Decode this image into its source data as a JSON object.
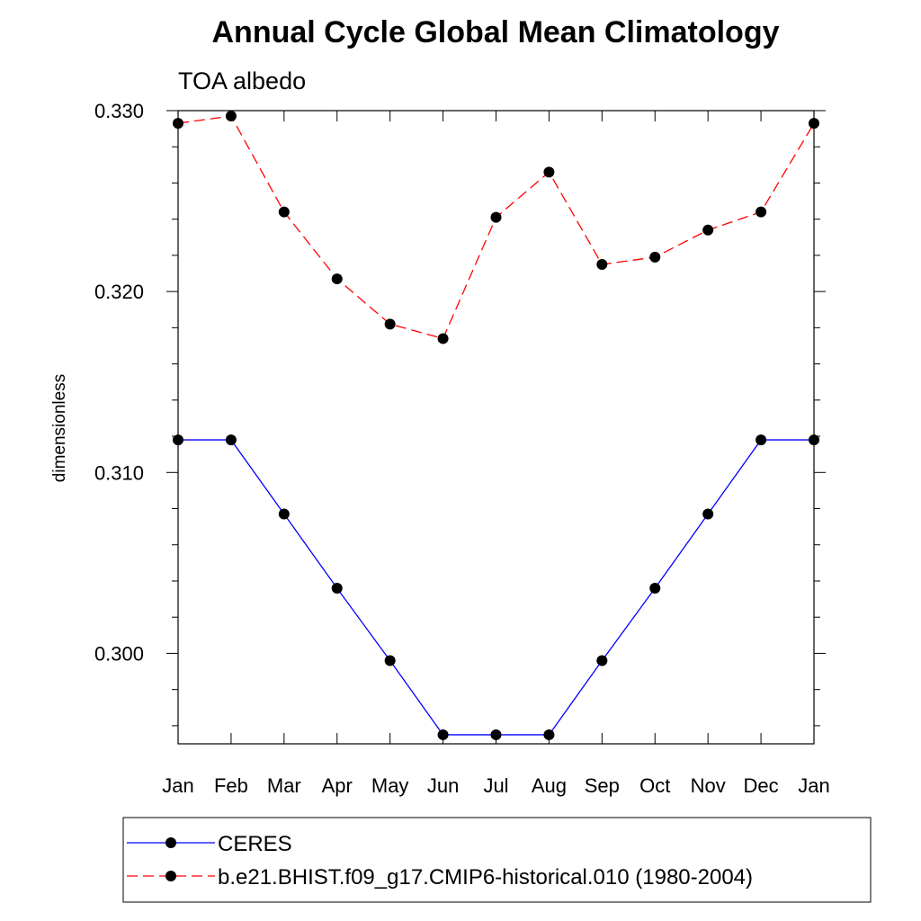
{
  "chart_data": {
    "type": "line",
    "title": "Annual Cycle Global Mean Climatology",
    "subtitle": "TOA albedo",
    "xlabel": "",
    "ylabel": "dimensionless",
    "categories": [
      "Jan",
      "Feb",
      "Mar",
      "Apr",
      "May",
      "Jun",
      "Jul",
      "Aug",
      "Sep",
      "Oct",
      "Nov",
      "Dec",
      "Jan"
    ],
    "ylim": [
      0.295,
      0.33
    ],
    "yticks": [
      "0.300",
      "0.310",
      "0.320",
      "0.330"
    ],
    "grid": false,
    "legend_position": "bottom",
    "series": [
      {
        "name": "CERES",
        "color": "#0000ff",
        "line_style": "solid",
        "marker": "circle",
        "values": [
          0.3118,
          0.3118,
          0.3077,
          0.3036,
          0.2996,
          0.2955,
          0.2955,
          0.2955,
          0.2996,
          0.3036,
          0.3077,
          0.3118,
          0.3118
        ]
      },
      {
        "name": "b.e21.BHIST.f09_g17.CMIP6-historical.010 (1980-2004)",
        "color": "#ff0000",
        "line_style": "dashed",
        "marker": "circle",
        "values": [
          0.3293,
          0.3297,
          0.3244,
          0.3207,
          0.3182,
          0.3174,
          0.3241,
          0.3266,
          0.3215,
          0.3219,
          0.3234,
          0.3244,
          0.3293
        ]
      }
    ]
  }
}
